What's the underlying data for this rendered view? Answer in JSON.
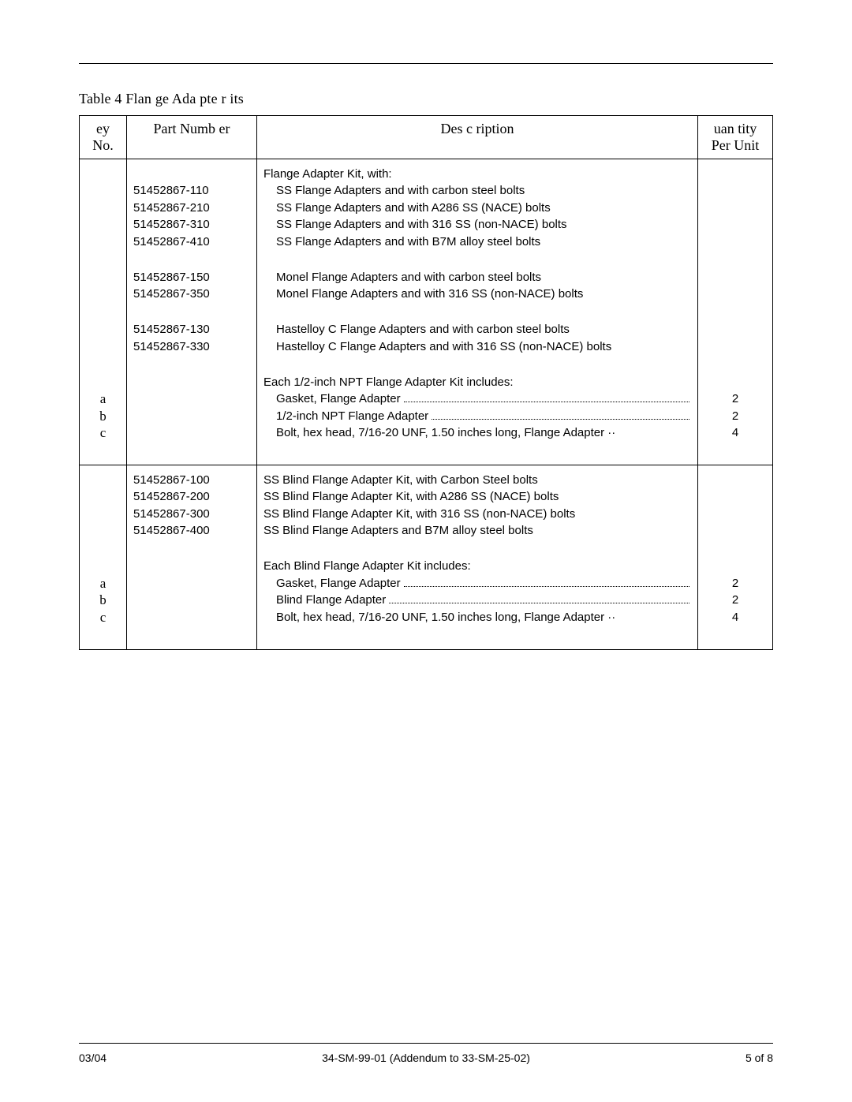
{
  "title": "Table 4  Flan   ge Ada  pte r its",
  "headers": {
    "key": "ey No.",
    "part": "Part Numb   er",
    "desc": "Des c ription",
    "qty": "uan    tity Per Unit"
  },
  "section1": {
    "lead": "Flange Adapter Kit, with:",
    "parts_a": [
      "51452867-110",
      "51452867-210",
      "51452867-310",
      "51452867-410"
    ],
    "descs_a": [
      "SS Flange Adapters and with carbon steel bolts",
      "SS Flange Adapters and with A286 SS (NACE) bolts",
      "SS Flange Adapters and with 316 SS (non-NACE) bolts",
      "SS Flange Adapters and with B7M alloy steel bolts"
    ],
    "parts_b": [
      "51452867-150",
      "51452867-350"
    ],
    "descs_b": [
      "Monel Flange Adapters and with carbon steel bolts",
      "Monel Flange Adapters and with 316 SS (non-NACE) bolts"
    ],
    "parts_c": [
      "51452867-130",
      "51452867-330"
    ],
    "descs_c": [
      "Hastelloy C Flange Adapters and with carbon steel bolts",
      "Hastelloy C Flange Adapters and with 316 SS (non-NACE) bolts"
    ],
    "includes_header": "Each 1/2-inch NPT Flange Adapter Kit includes:",
    "keys": [
      "a",
      "b",
      "c"
    ],
    "items": [
      "Gasket, Flange Adapter",
      "1/2-inch NPT Flange Adapter",
      "Bolt, hex head, 7/16-20 UNF, 1.50 inches long, Flange Adapter ··"
    ],
    "qtys": [
      "2",
      "2",
      "4"
    ]
  },
  "section2": {
    "parts": [
      "51452867-100",
      "51452867-200",
      "51452867-300",
      "51452867-400"
    ],
    "descs": [
      "SS Blind Flange Adapter Kit, with Carbon Steel bolts",
      "SS Blind Flange Adapter Kit, with A286 SS (NACE) bolts",
      "SS Blind Flange Adapter Kit, with 316 SS (non-NACE) bolts",
      "SS Blind Flange Adapters and B7M alloy steel bolts"
    ],
    "includes_header": "Each Blind Flange Adapter Kit includes:",
    "keys": [
      "a",
      "b",
      "c"
    ],
    "items": [
      "Gasket, Flange Adapter",
      "Blind Flange Adapter",
      "Bolt, hex head, 7/16-20 UNF, 1.50 inches long, Flange Adapter ··"
    ],
    "qtys": [
      "2",
      "2",
      "4"
    ]
  },
  "footer": {
    "left": "03/04",
    "center": "34-SM-99-01 (Addendum to 33-SM-25-02)",
    "right": "5 of 8"
  }
}
